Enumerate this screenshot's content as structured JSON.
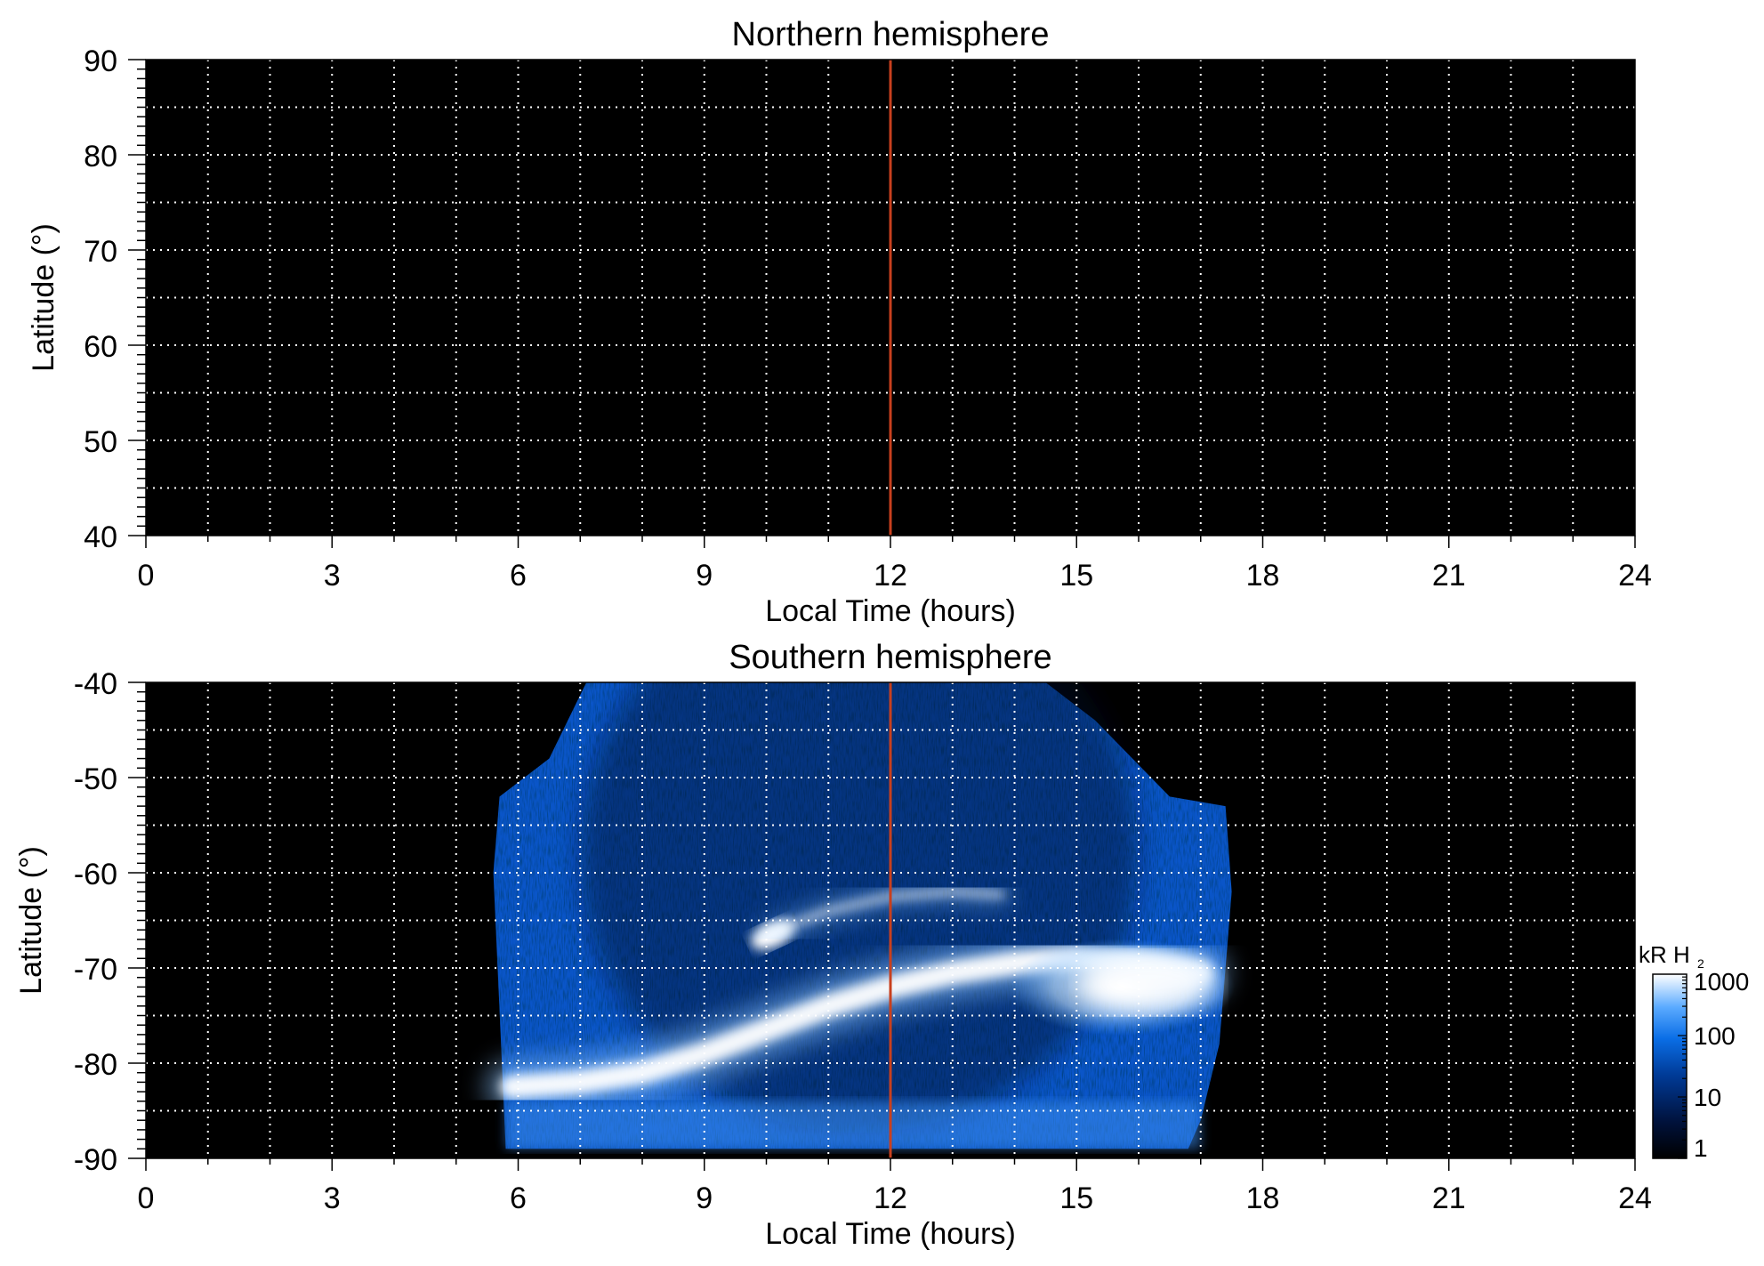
{
  "chart_data": [
    {
      "type": "heatmap",
      "panel": "north",
      "title": "Northern hemisphere",
      "xlabel": "Local Time (hours)",
      "ylabel": "Latitude (°)",
      "xlim": [
        0,
        24
      ],
      "ylim": [
        40,
        90
      ],
      "xticks": [
        0,
        3,
        6,
        9,
        12,
        15,
        18,
        21,
        24
      ],
      "yticks": [
        40,
        50,
        60,
        70,
        80,
        90
      ],
      "grid": true,
      "grid_x_step": 1,
      "grid_y_step": 5,
      "background_color": "#000000",
      "marker_line": {
        "x": 12,
        "color": "#c8401e"
      },
      "emission": "none"
    },
    {
      "type": "heatmap",
      "panel": "south",
      "title": "Southern hemisphere",
      "xlabel": "Local Time (hours)",
      "ylabel": "Latitude (°)",
      "xlim": [
        0,
        24
      ],
      "ylim": [
        -90,
        -40
      ],
      "xticks": [
        0,
        3,
        6,
        9,
        12,
        15,
        18,
        21,
        24
      ],
      "yticks": [
        -90,
        -80,
        -70,
        -60,
        -50,
        -40
      ],
      "grid": true,
      "grid_x_step": 1,
      "grid_y_step": 5,
      "background_color": "#000000",
      "marker_line": {
        "x": 12,
        "color": "#c8401e"
      },
      "coverage": {
        "lt_range": [
          5.6,
          17.5
        ],
        "lat_range": [
          -89,
          -40
        ],
        "boundary": [
          [
            5.8,
            -89
          ],
          [
            5.6,
            -60
          ],
          [
            5.7,
            -52
          ],
          [
            6.5,
            -48
          ],
          [
            7.1,
            -40
          ],
          [
            14.5,
            -40
          ],
          [
            15.3,
            -44
          ],
          [
            16.5,
            -52
          ],
          [
            17.4,
            -53
          ],
          [
            17.5,
            -62
          ],
          [
            17.3,
            -78
          ],
          [
            17.0,
            -86
          ],
          [
            16.8,
            -89
          ]
        ]
      },
      "features": [
        {
          "name": "main oval",
          "points": [
            [
              5.9,
              -82.5
            ],
            [
              7.0,
              -82
            ],
            [
              8.0,
              -81
            ],
            [
              9.0,
              -79
            ],
            [
              10.0,
              -76.5
            ],
            [
              11.0,
              -74
            ],
            [
              12.0,
              -72
            ],
            [
              13.0,
              -70.5
            ],
            [
              14.0,
              -69.5
            ],
            [
              15.0,
              -69
            ],
            [
              16.0,
              -69.5
            ],
            [
              17.0,
              -70.5
            ]
          ],
          "intensity_kR": 1000
        },
        {
          "name": "bright spot",
          "lt": 10.1,
          "lat": -66.5,
          "intensity_kR": 1000
        },
        {
          "name": "arc",
          "points": [
            [
              10.0,
              -66.5
            ],
            [
              11.0,
              -64
            ],
            [
              12.0,
              -62.5
            ],
            [
              13.0,
              -62
            ],
            [
              13.8,
              -62.3
            ]
          ],
          "intensity_kR": 300
        },
        {
          "name": "afternoon emission",
          "lt_range": [
            13,
            17.3
          ],
          "lat_range": [
            -78,
            -66
          ],
          "intensity_kR": 1000
        }
      ],
      "colorbar": {
        "label": "kR H",
        "label_sub": "2",
        "scale": "log",
        "ticks": [
          "1000",
          "100",
          "10",
          "1"
        ],
        "range": [
          1,
          1000
        ],
        "colors": [
          "#000000",
          "#00123c",
          "#003a96",
          "#0a6ee6",
          "#5aaaff",
          "#ffffff"
        ]
      }
    }
  ]
}
